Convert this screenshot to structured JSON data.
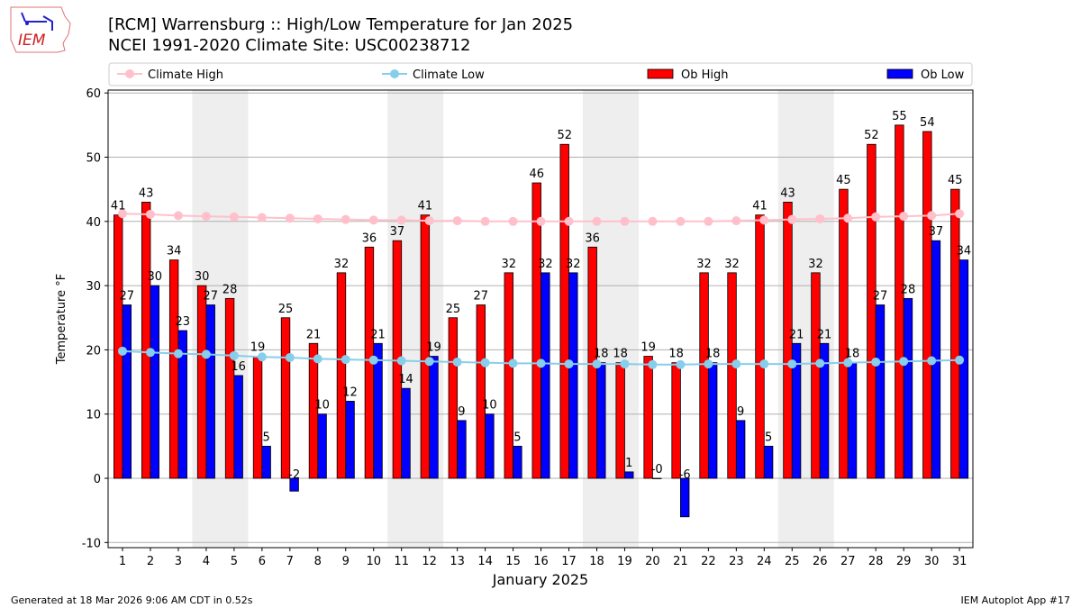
{
  "header": {
    "title_line1": "[RCM] Warrensburg :: High/Low Temperature for Jan 2025",
    "title_line2": "NCEI 1991-2020 Climate Site: USC00238712",
    "logo_text": "IEM"
  },
  "footer": {
    "generated": "Generated at 18 Mar 2026 9:06 AM CDT in 0.52s",
    "app": "IEM Autoplot App #17"
  },
  "chart_data": {
    "type": "bar",
    "xlabel": "January 2025",
    "ylabel": "Temperature °F",
    "ylim": [
      -11,
      60.5
    ],
    "yticks": [
      -10,
      0,
      10,
      20,
      30,
      40,
      50,
      60
    ],
    "grid": true,
    "legend_placement": "top",
    "categories": [
      1,
      2,
      3,
      4,
      5,
      6,
      7,
      8,
      9,
      10,
      11,
      12,
      13,
      14,
      15,
      16,
      17,
      18,
      19,
      20,
      21,
      22,
      23,
      24,
      25,
      26,
      27,
      28,
      29,
      30,
      31
    ],
    "weekend_shading": [
      [
        4,
        5
      ],
      [
        11,
        12
      ],
      [
        18,
        19
      ],
      [
        25,
        26
      ]
    ],
    "series": [
      {
        "name": "Climate High",
        "kind": "line",
        "color": "#ffc0cb",
        "values": [
          41.2,
          41.1,
          40.9,
          40.8,
          40.7,
          40.6,
          40.5,
          40.4,
          40.3,
          40.2,
          40.2,
          40.1,
          40.1,
          40.0,
          40.0,
          40.0,
          40.0,
          40.0,
          40.0,
          40.0,
          40.0,
          40.0,
          40.1,
          40.2,
          40.3,
          40.4,
          40.5,
          40.7,
          40.8,
          40.9,
          41.2
        ]
      },
      {
        "name": "Climate Low",
        "kind": "line",
        "color": "#87ceeb",
        "values": [
          19.8,
          19.6,
          19.4,
          19.3,
          19.1,
          18.9,
          18.8,
          18.6,
          18.5,
          18.4,
          18.3,
          18.2,
          18.1,
          18.0,
          17.9,
          17.9,
          17.8,
          17.8,
          17.8,
          17.7,
          17.7,
          17.8,
          17.8,
          17.8,
          17.8,
          17.9,
          18.0,
          18.1,
          18.2,
          18.3,
          18.4
        ]
      },
      {
        "name": "Ob High",
        "kind": "bar",
        "color": "#ff0000",
        "values": [
          41,
          43,
          34,
          30,
          28,
          19,
          25,
          21,
          32,
          36,
          37,
          41,
          25,
          27,
          32,
          46,
          52,
          36,
          18,
          19,
          18,
          32,
          32,
          41,
          43,
          32,
          45,
          52,
          55,
          54,
          45
        ]
      },
      {
        "name": "Ob Low",
        "kind": "bar",
        "color": "#0000ff",
        "values": [
          27,
          30,
          23,
          27,
          16,
          5,
          -2,
          10,
          12,
          21,
          14,
          19,
          9,
          10,
          5,
          32,
          32,
          18,
          1,
          0,
          -6,
          18,
          9,
          5,
          21,
          21,
          18,
          27,
          28,
          37,
          34
        ]
      }
    ]
  }
}
